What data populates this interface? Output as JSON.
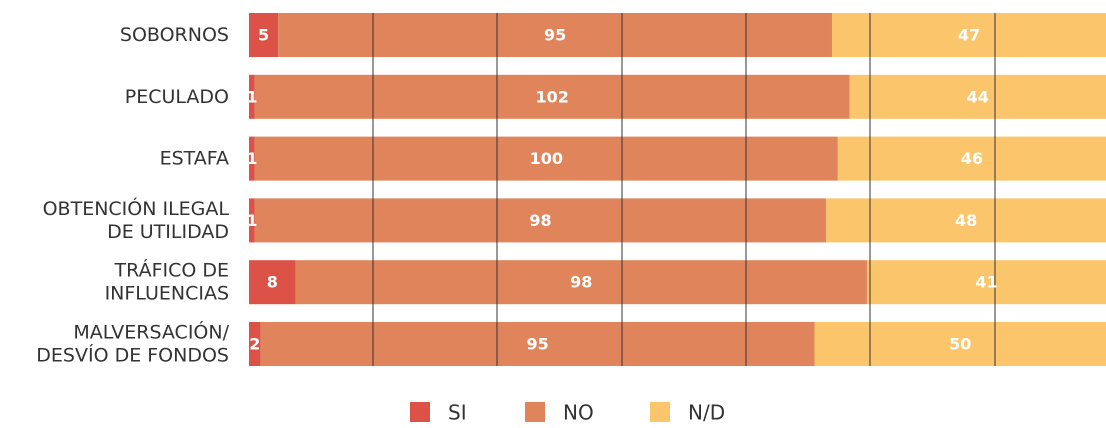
{
  "chart_data": {
    "type": "stacked-barh",
    "categories": [
      "SOBORNOS",
      "PECULADO",
      "ESTAFA",
      "OBTENCIÓN ILEGAL\nDE UTILIDAD",
      "TRÁFICO DE\nINFLUENCIAS",
      "MALVERSACIÓN/\nDESVÍO DE FONDOS"
    ],
    "series": [
      {
        "name": "SI",
        "color": "#dc5246",
        "values": [
          5,
          1,
          1,
          1,
          8,
          2
        ]
      },
      {
        "name": "NO",
        "color": "#e0855b",
        "values": [
          95,
          102,
          100,
          98,
          98,
          95
        ]
      },
      {
        "name": "N/D",
        "color": "#fbc56b",
        "values": [
          47,
          44,
          46,
          48,
          41,
          50
        ]
      }
    ],
    "xlim": [
      0,
      147
    ],
    "legend": "bottom"
  }
}
